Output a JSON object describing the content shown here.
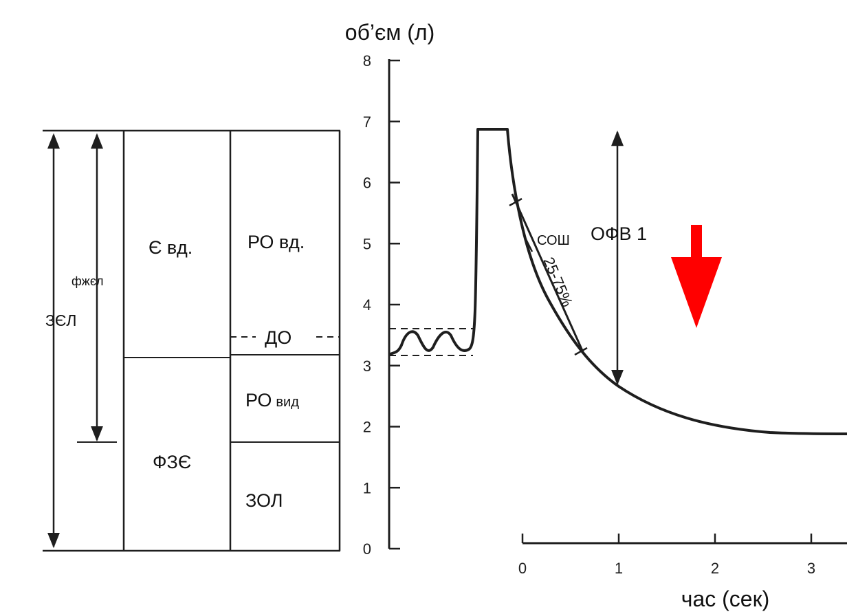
{
  "diagram": {
    "y_axis": {
      "label": "об’єм (л)",
      "ticks": [
        "0",
        "1",
        "2",
        "3",
        "4",
        "5",
        "6",
        "7",
        "8"
      ]
    },
    "x_axis": {
      "label": "час (сек)",
      "ticks": [
        "0",
        "1",
        "2",
        "3"
      ]
    },
    "volume_bars": {
      "total_capacity": "ЗЄЛ",
      "vital_capacity": "фжєл",
      "inspiratory_capacity": "Є вд.",
      "functional_residual": "ФЗЄ",
      "inspiratory_reserve": "РО вд.",
      "tidal_volume": "ДО",
      "expiratory_reserve": "РО",
      "expiratory_reserve_suffix": "вид",
      "residual_volume": "ЗОЛ"
    },
    "curve_labels": {
      "peak_flow": "СОШ",
      "fev1": "ОФВ 1",
      "mid_flow": "25-75%"
    },
    "arrow_color": "#ff0000"
  }
}
